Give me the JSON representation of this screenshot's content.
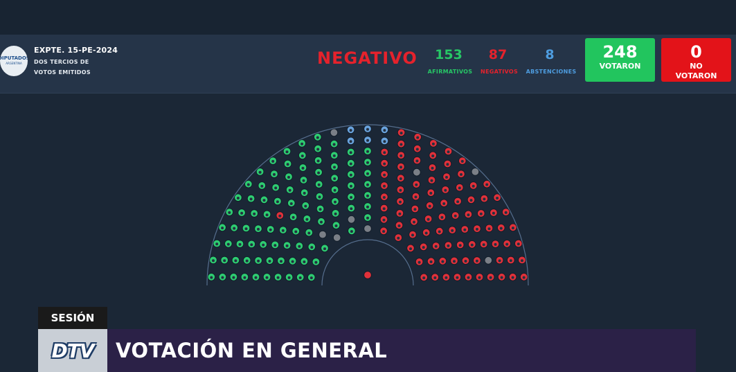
{
  "expediente": {
    "code": "EXPTE. 15-PE-2024",
    "line1": "DOS TERCIOS DE",
    "line2": "VOTOS EMITIDOS"
  },
  "logo": {
    "text": "DIPUTADOS",
    "sub": "ARGENTINA"
  },
  "result": "NEGATIVO",
  "counts": {
    "afirmativos": {
      "value": "153",
      "label": "AFIRMATIVOS"
    },
    "negativos": {
      "value": "87",
      "label": "NEGATIVOS"
    },
    "abstenciones": {
      "value": "8",
      "label": "ABSTENCIONES"
    }
  },
  "votaron": {
    "value": "248",
    "label": "VOTARON"
  },
  "no_votaron": {
    "value": "0",
    "label_line1": "NO",
    "label_line2": "VOTARON"
  },
  "colors": {
    "afirmativo": "#2ecc71",
    "negativo": "#e0313a",
    "abstencion": "#6aa3dd",
    "ausente": "#7a7f87"
  },
  "session": {
    "tag": "SESIÓN",
    "channel_logo": "DTV",
    "title": "VOTACIÓN EN GENERAL"
  }
}
